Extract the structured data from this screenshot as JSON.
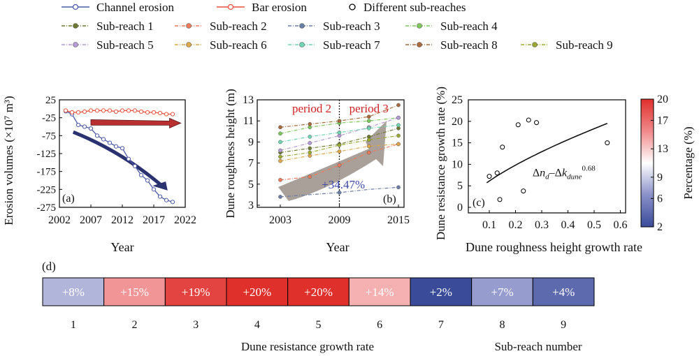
{
  "legend": {
    "row1": [
      {
        "label": "Channel erosion",
        "color": "#4a5aa8",
        "marker": "line-dot"
      },
      {
        "label": "Bar erosion",
        "color": "#e8513a",
        "marker": "line-dot"
      },
      {
        "label": "Different sub-reaches",
        "color": "#000000",
        "marker": "circle"
      }
    ],
    "subreaches": [
      {
        "label": "Sub-reach 1",
        "color": "#6b7a2e"
      },
      {
        "label": "Sub-reach 2",
        "color": "#f07a5a"
      },
      {
        "label": "Sub-reach 3",
        "color": "#6a7fa8"
      },
      {
        "label": "Sub-reach 4",
        "color": "#7cc95a"
      },
      {
        "label": "Sub-reach 5",
        "color": "#b79ad8"
      },
      {
        "label": "Sub-reach 6",
        "color": "#e0a848"
      },
      {
        "label": "Sub-reach 7",
        "color": "#6ed6b0"
      },
      {
        "label": "Sub-reach 8",
        "color": "#a86a3a"
      },
      {
        "label": "Sub-reach 9",
        "color": "#9aa82e"
      }
    ]
  },
  "chart_data": [
    {
      "id": "a",
      "type": "line",
      "panel_label": "(a)",
      "xlabel": "Year",
      "ylabel": "Erosion volumes (×10⁷ m³)",
      "xlim": [
        2002,
        2022
      ],
      "ylim": [
        -275,
        25
      ],
      "xticks": [
        2002,
        2007,
        2012,
        2017,
        2022
      ],
      "yticks": [
        25,
        -25,
        -75,
        -125,
        -175,
        -225,
        -275
      ],
      "series": [
        {
          "name": "Channel erosion",
          "color": "#4a5aa8",
          "x": [
            2003,
            2004,
            2005,
            2006,
            2007,
            2008,
            2009,
            2010,
            2011,
            2012,
            2013,
            2014,
            2015,
            2016,
            2017,
            2018,
            2019,
            2020
          ],
          "y": [
            -7,
            -15,
            -45,
            -50,
            -55,
            -75,
            -85,
            -95,
            -105,
            -110,
            -140,
            -160,
            -185,
            -200,
            -225,
            -245,
            -255,
            -260
          ]
        },
        {
          "name": "Bar erosion",
          "color": "#e8513a",
          "x": [
            2003,
            2004,
            2005,
            2006,
            2007,
            2008,
            2009,
            2010,
            2011,
            2012,
            2013,
            2014,
            2015,
            2016,
            2017,
            2018,
            2019,
            2020
          ],
          "y": [
            -5,
            -10,
            -10,
            -8,
            -5,
            -5,
            -5,
            -5,
            -8,
            -5,
            -5,
            -5,
            -8,
            -10,
            -10,
            -12,
            -15,
            -15
          ]
        }
      ]
    },
    {
      "id": "b",
      "type": "line",
      "panel_label": "(b)",
      "xlabel": "Year",
      "ylabel": "Dune roughness height (m)",
      "xlim": [
        2003,
        2015
      ],
      "ylim": [
        3,
        13
      ],
      "xticks": [
        2003,
        2009,
        2015
      ],
      "yticks": [
        3,
        5,
        7,
        9,
        11,
        13
      ],
      "annotations": {
        "period2": "period 2",
        "period3": "period 3",
        "increase": "+34.47%"
      },
      "divider_year": 2009,
      "series_x": [
        2003,
        2006,
        2009,
        2012,
        2015
      ],
      "series": [
        {
          "ref": "Sub-reach 1",
          "color": "#6b7a2e",
          "y": [
            8.0,
            8.4,
            8.8,
            9.5,
            10.3
          ]
        },
        {
          "ref": "Sub-reach 2",
          "color": "#f07a5a",
          "y": [
            5.4,
            5.7,
            6.8,
            8.0,
            8.8
          ]
        },
        {
          "ref": "Sub-reach 3",
          "color": "#6a7fa8",
          "y": [
            3.8,
            4.0,
            4.2,
            4.5,
            4.7
          ]
        },
        {
          "ref": "Sub-reach 4",
          "color": "#7cc95a",
          "y": [
            9.8,
            10.4,
            10.8,
            11.0,
            11.3
          ]
        },
        {
          "ref": "Sub-reach 5",
          "color": "#b79ad8",
          "y": [
            8.2,
            8.9,
            9.6,
            10.4,
            11.3
          ]
        },
        {
          "ref": "Sub-reach 6",
          "color": "#e0a848",
          "y": [
            7.2,
            7.7,
            8.1,
            8.6,
            8.8
          ]
        },
        {
          "ref": "Sub-reach 7",
          "color": "#6ed6b0",
          "y": [
            9.0,
            9.5,
            9.9,
            10.3,
            10.6
          ]
        },
        {
          "ref": "Sub-reach 8",
          "color": "#a86a3a",
          "y": [
            10.4,
            10.7,
            11.0,
            11.4,
            12.5
          ]
        },
        {
          "ref": "Sub-reach 9",
          "color": "#9aa82e",
          "y": [
            7.6,
            8.0,
            8.7,
            9.2,
            9.6
          ]
        }
      ]
    },
    {
      "id": "c",
      "type": "scatter",
      "panel_label": "(c)",
      "xlabel": "Dune roughness height growth rate",
      "ylabel": "Dune resistance growth rate (%)",
      "xlim": [
        0,
        0.6
      ],
      "ylim": [
        0,
        25
      ],
      "xticks": [
        0.1,
        0.2,
        0.3,
        0.4,
        0.5,
        0.6
      ],
      "yticks": [
        0,
        5,
        10,
        15,
        20,
        25
      ],
      "points": [
        {
          "x": 0.1,
          "y": 7.2
        },
        {
          "x": 0.13,
          "y": 8.0
        },
        {
          "x": 0.14,
          "y": 1.8
        },
        {
          "x": 0.15,
          "y": 14.0
        },
        {
          "x": 0.21,
          "y": 19.2
        },
        {
          "x": 0.23,
          "y": 3.8
        },
        {
          "x": 0.25,
          "y": 20.3
        },
        {
          "x": 0.28,
          "y": 19.7
        },
        {
          "x": 0.55,
          "y": 15.0
        }
      ],
      "fit": {
        "exponent": 0.68,
        "coef": 29.3,
        "x_start": 0.09,
        "x_end": 0.55
      },
      "equation": {
        "a": "Δ",
        "n": "n",
        "n_sub": "d",
        "minus": "–Δ",
        "k": "k",
        "k_sub": "dune",
        "exp": "0.68"
      },
      "colorbar": {
        "label": "Percentage (%)",
        "min": 2,
        "max": 20,
        "ticks": [
          2,
          6,
          9,
          13,
          17,
          20
        ],
        "stops": [
          "#3a4b9a",
          "#8a90c8",
          "#ffffff",
          "#f0888a",
          "#e0302c"
        ]
      }
    },
    {
      "id": "d",
      "type": "heatmap",
      "panel_label": "(d)",
      "xlabel": "Sub-reach number",
      "caption": "Dune resistance growth rate",
      "categories": [
        "1",
        "2",
        "3",
        "4",
        "5",
        "6",
        "7",
        "8",
        "9"
      ],
      "labels": [
        "+8%",
        "+15%",
        "+19%",
        "+20%",
        "+20%",
        "+14%",
        "+2%",
        "+7%",
        "+4%"
      ],
      "values": [
        8,
        15,
        19,
        20,
        20,
        14,
        2,
        7,
        4
      ]
    }
  ]
}
